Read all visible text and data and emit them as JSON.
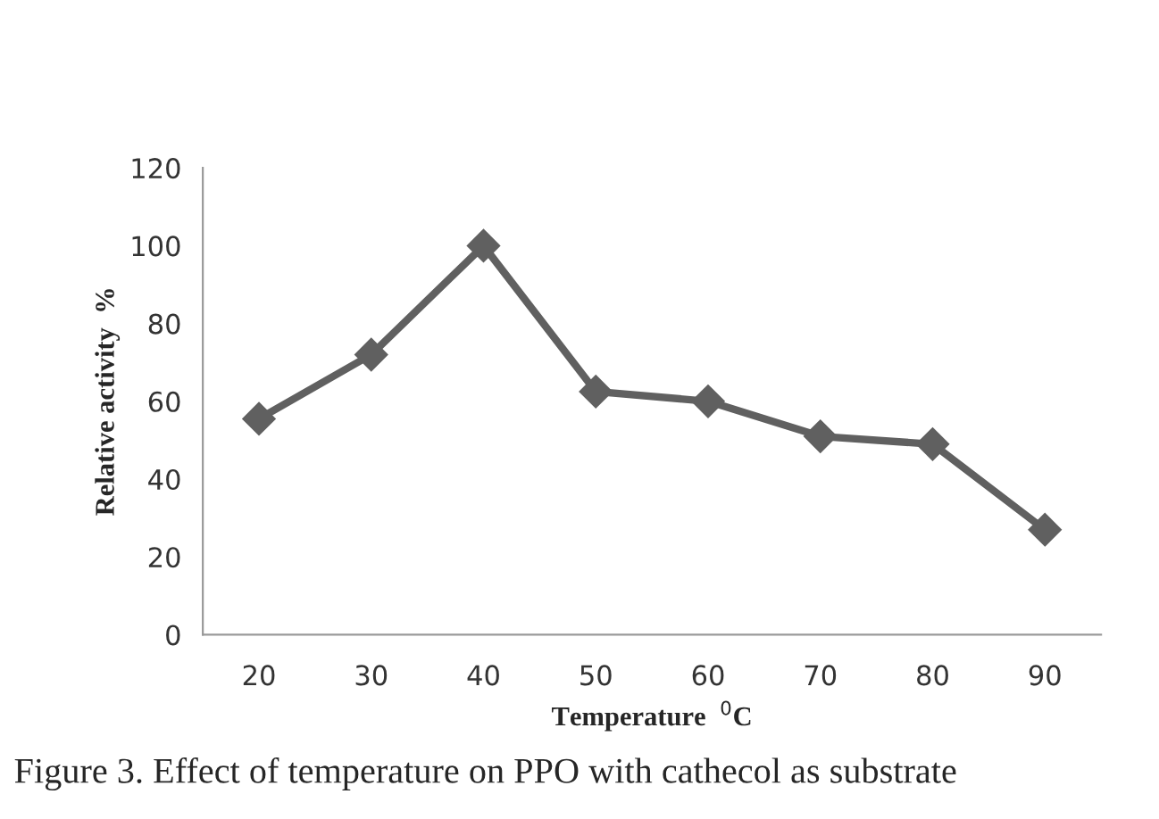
{
  "chart_data": {
    "type": "line",
    "xlabel": "Temperature  $^{0}$C",
    "ylabel": "Relative activity  %",
    "categories": [
      "20",
      "30",
      "40",
      "50",
      "60",
      "70",
      "80",
      "90"
    ],
    "series": [
      {
        "color": "#606060",
        "values": [
          55.5,
          72,
          100,
          62.5,
          60,
          51,
          49,
          27
        ]
      }
    ],
    "ylim": [
      0,
      120
    ],
    "yticks": [
      0,
      20,
      40,
      60,
      80,
      100,
      120
    ],
    "grid": false,
    "legend": false,
    "marker": "diamond",
    "line_style": "solid",
    "annotations": [
      "Figure 3. Effect of temperature on PPO with cathecol as substrate"
    ]
  }
}
